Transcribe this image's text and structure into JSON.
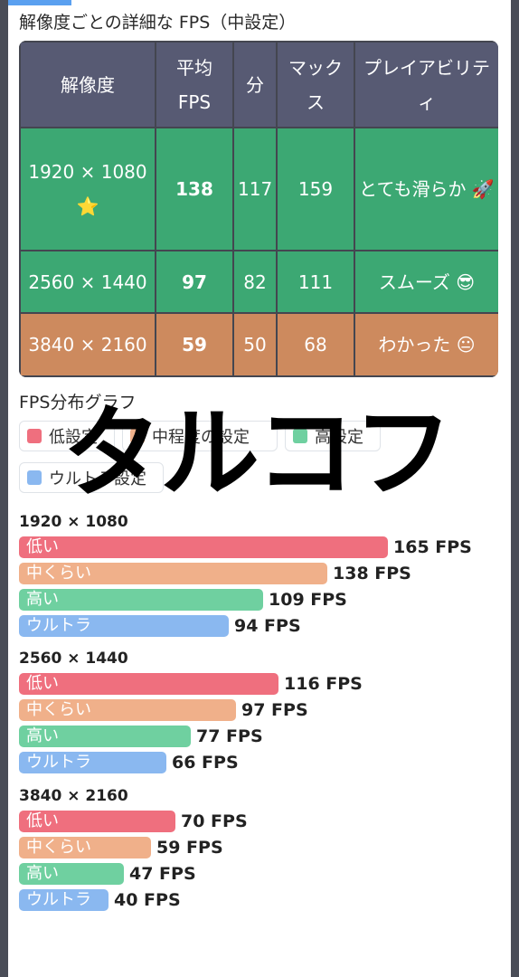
{
  "section_title": "解像度ごとの詳細な FPS（中設定）",
  "table": {
    "headers": [
      "解像度",
      "平均 FPS",
      "分",
      "マックス",
      "プレイアビリティ"
    ],
    "rows": [
      {
        "resolution": "1920 × 1080 ⭐",
        "avg": "138",
        "min": "117",
        "max": "159",
        "play": "とても滑らか 🚀",
        "color": "#3ca873"
      },
      {
        "resolution": "2560 × 1440",
        "avg": "97",
        "min": "82",
        "max": "111",
        "play": "スムーズ 😎",
        "color": "#3ca873"
      },
      {
        "resolution": "3840 × 2160",
        "avg": "59",
        "min": "50",
        "max": "68",
        "play": "わかった 😐",
        "color": "#cd8a5e"
      }
    ]
  },
  "graph_title": "FPS分布グラフ",
  "legend": [
    {
      "label": "低設定",
      "color": "#ef6f7e"
    },
    {
      "label": "中程度の設定",
      "color": "#f0b08a"
    },
    {
      "label": "高設定",
      "color": "#6fd0a0"
    },
    {
      "label": "ウルトラ設定",
      "color": "#8ab8f0"
    }
  ],
  "chart_data": {
    "type": "bar",
    "categories": [
      "1920 × 1080",
      "2560 × 1440",
      "3840 × 2160"
    ],
    "series": [
      {
        "name": "低い",
        "values": [
          165,
          116,
          70
        ],
        "color": "#ef6f7e"
      },
      {
        "name": "中くらい",
        "values": [
          138,
          97,
          59
        ],
        "color": "#f0b08a"
      },
      {
        "name": "高い",
        "values": [
          109,
          77,
          47
        ],
        "color": "#6fd0a0"
      },
      {
        "name": "ウルトラ",
        "values": [
          94,
          66,
          40
        ],
        "color": "#8ab8f0"
      }
    ],
    "unit": "FPS",
    "xlim": [
      0,
      165
    ]
  },
  "watermark": "タルコフ"
}
